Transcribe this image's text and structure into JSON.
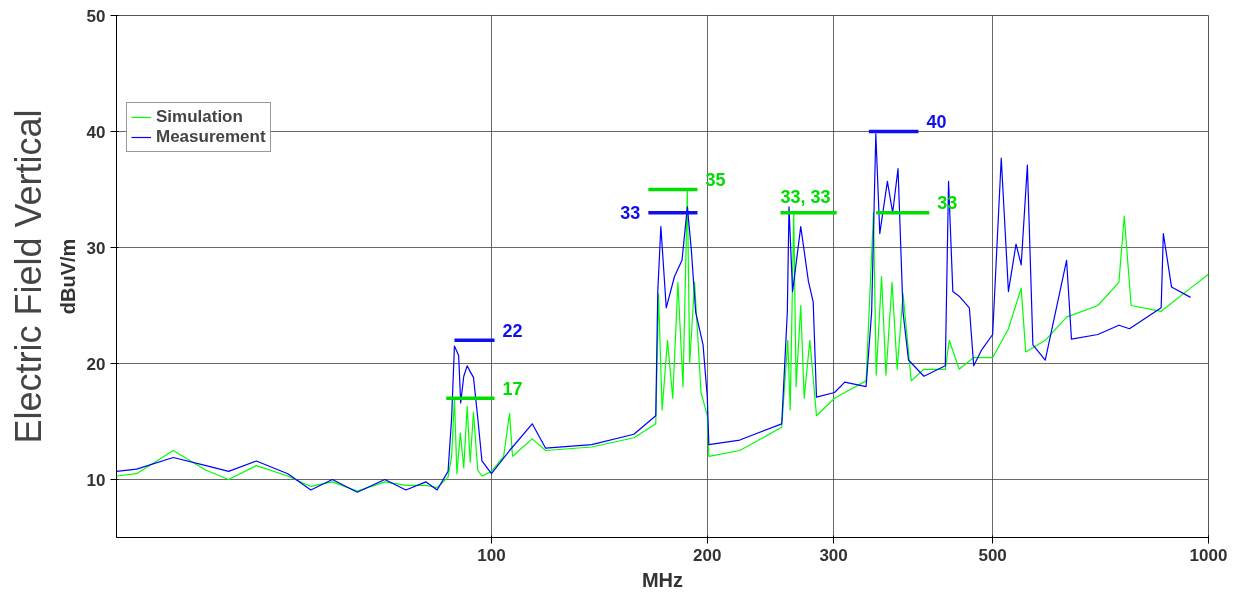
{
  "chart_data": {
    "type": "line",
    "title": "Electric Field Vertical",
    "xlabel": "MHz",
    "ylabel": "dBuV/m",
    "log": "x",
    "xlim": [
      30,
      1000
    ],
    "xticks": [
      100,
      200,
      300,
      500,
      1000
    ],
    "ylim": [
      5,
      50
    ],
    "yticks": [
      10,
      20,
      30,
      40,
      50
    ],
    "annotations": [
      {
        "text": "33, 33",
        "x": 253,
        "y": 33
      }
    ],
    "grid": true,
    "legend": "top left",
    "line_style": "solid",
    "marker": "none",
    "series": [
      {
        "name": "Simulation",
        "color": "#00ff00",
        "x": [
          30,
          32,
          36,
          40,
          43,
          47,
          52,
          56,
          60,
          65,
          71,
          76,
          81,
          84,
          87,
          88,
          88.8,
          89.5,
          90.5,
          91.5,
          92.5,
          93.4,
          94.4,
          95.7,
          97,
          100,
          104,
          106,
          107,
          114,
          119,
          138,
          158,
          169.5,
          171,
          173,
          176,
          179,
          182,
          185,
          187.6,
          189,
          192,
          196,
          200,
          201,
          222,
          254,
          259,
          261,
          264,
          266,
          270,
          273,
          278,
          284,
          301,
          311,
          333,
          341,
          344,
          350,
          355,
          362,
          368,
          375,
          385,
          401,
          429.5,
          435,
          449,
          470,
          500,
          526,
          548,
          556,
          592,
          634,
          701,
          750,
          763,
          780,
          859,
          944,
          1000
        ],
        "values": [
          10.3,
          10.5,
          12.5,
          10.8,
          10,
          11.2,
          10.3,
          9.4,
          9.8,
          9,
          9.8,
          9.5,
          9.5,
          9.3,
          10.2,
          12,
          17,
          10.5,
          14,
          11,
          16.3,
          11.5,
          15.8,
          10.8,
          10.3,
          10.7,
          12,
          15.7,
          12,
          13.5,
          12.5,
          12.8,
          13.6,
          14.8,
          26,
          16,
          22,
          17,
          27,
          18,
          35,
          20,
          27,
          17.5,
          15.5,
          12,
          12.5,
          14.5,
          22,
          16,
          33,
          18,
          25,
          17,
          22,
          15.5,
          17,
          17.5,
          18.5,
          33,
          19,
          27.5,
          19,
          27,
          19.5,
          26,
          18.5,
          19.5,
          19.5,
          22,
          19.5,
          20.5,
          20.5,
          23,
          26.5,
          21,
          22,
          24,
          25,
          27,
          32.7,
          25,
          24.5,
          26.5,
          27.7
        ]
      },
      {
        "name": "Measurement",
        "color": "#0000ff",
        "x": [
          30,
          32,
          36,
          40,
          43,
          47,
          52,
          56,
          60,
          65,
          71,
          76,
          81,
          84,
          87,
          88,
          88.8,
          90,
          90.6,
          91.5,
          92.5,
          93.4,
          94.4,
          95.7,
          97,
          100,
          106,
          114,
          119,
          138,
          158,
          169.5,
          170.6,
          172.3,
          175.3,
          180,
          184.4,
          187.6,
          190,
          192.7,
          197.3,
          200,
          201,
          222,
          254,
          258.6,
          260,
          263,
          270,
          276.7,
          281,
          284,
          301,
          311,
          333,
          339,
          343.6,
          348,
          356.6,
          362.7,
          369,
          375,
          381.6,
          401,
          429.5,
          434,
          440,
          449,
          464,
          470.5,
          483,
          500,
          514,
          526,
          539,
          548,
          559,
          569,
          592,
          634,
          644,
          701,
          750,
          776,
          859,
          865,
          888,
          944
        ],
        "values": [
          10.7,
          10.9,
          11.9,
          11.2,
          10.7,
          11.6,
          10.5,
          9.1,
          10,
          8.9,
          10,
          9.1,
          9.8,
          9.1,
          10.7,
          15.3,
          21.5,
          20.7,
          16.6,
          18.9,
          19.8,
          19.3,
          18.8,
          15.3,
          11.6,
          10.5,
          12.5,
          14.8,
          12.7,
          13,
          13.9,
          15.5,
          26.2,
          31.8,
          24.8,
          27.5,
          28.9,
          33.5,
          29.8,
          24.4,
          21.6,
          17.1,
          13,
          13.4,
          14.8,
          24.4,
          33.5,
          26.2,
          31.8,
          27.1,
          25.3,
          17.1,
          17.5,
          18.4,
          18,
          24.4,
          39.8,
          31.2,
          35.7,
          33,
          36.8,
          24.4,
          20.3,
          18.9,
          19.8,
          35.7,
          26.2,
          25.8,
          24.8,
          19.8,
          21.2,
          22.5,
          37.7,
          26.2,
          30.3,
          28.5,
          37.1,
          21.6,
          20.3,
          28.9,
          22.1,
          22.5,
          23.3,
          23,
          24.8,
          31.2,
          26.6,
          25.7
        ]
      },
      {
        "color": "#00dd00",
        "x": [
          86.5,
          101,
          120,
          165.5,
          193.8,
          220,
          253,
          303,
          320,
          344,
          408
        ],
        "values": [
          17,
          17,
          null,
          35,
          35,
          null,
          33,
          33,
          null,
          33,
          33
        ],
        "value_labels": [
          null,
          "17",
          null,
          null,
          "35",
          null,
          null,
          null,
          null,
          null,
          "33"
        ]
      },
      {
        "color": "#1010ee",
        "x": [
          88.8,
          101,
          120,
          165.5,
          193.8,
          220,
          336,
          394
        ],
        "values": [
          22,
          22,
          null,
          33,
          33,
          null,
          40,
          40
        ],
        "value_labels": [
          null,
          "22",
          null,
          "33",
          null,
          null,
          null,
          "40"
        ]
      }
    ]
  }
}
